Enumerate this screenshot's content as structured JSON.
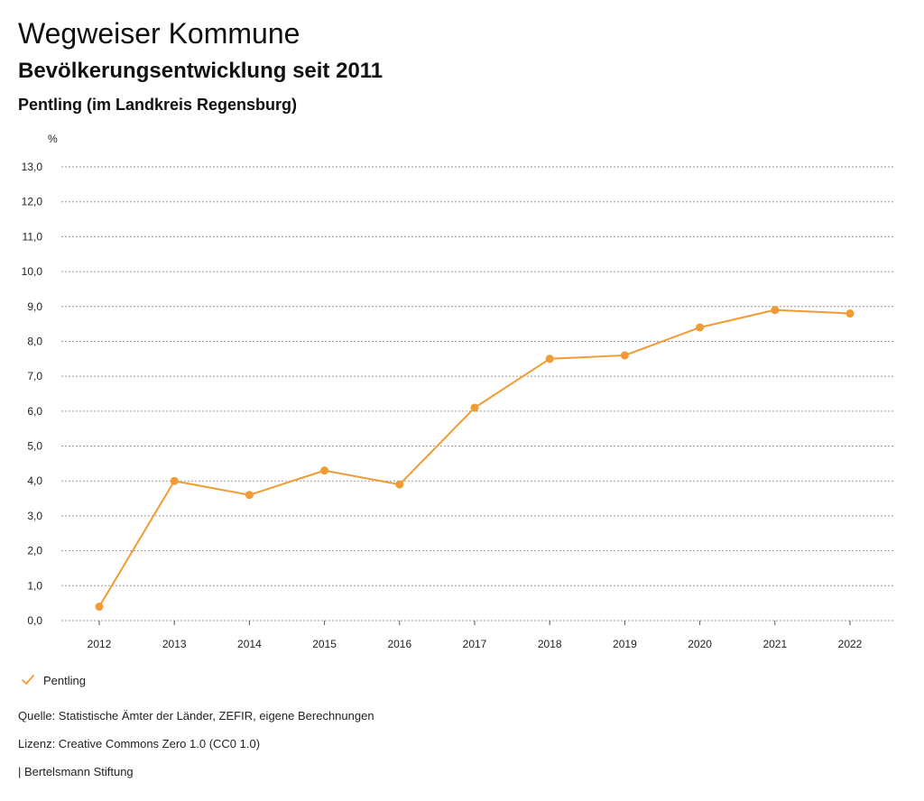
{
  "header": {
    "title": "Wegweiser Kommune",
    "subtitle": "Bevölkerungsentwicklung seit 2011",
    "location": "Pentling (im Landkreis Regensburg)"
  },
  "chart_data": {
    "type": "line",
    "title": "Bevölkerungsentwicklung seit 2011",
    "ylabel": "%",
    "xlabel": "",
    "categories": [
      "2012",
      "2013",
      "2014",
      "2015",
      "2016",
      "2017",
      "2018",
      "2019",
      "2020",
      "2021",
      "2022"
    ],
    "series": [
      {
        "name": "Pentling",
        "values": [
          0.4,
          4.0,
          3.6,
          4.3,
          3.9,
          6.1,
          7.5,
          7.6,
          8.4,
          8.9,
          8.8
        ]
      }
    ],
    "ylim": [
      0,
      13
    ],
    "yticks": [
      "0,0",
      "1,0",
      "2,0",
      "3,0",
      "4,0",
      "5,0",
      "6,0",
      "7,0",
      "8,0",
      "9,0",
      "10,0",
      "11,0",
      "12,0",
      "13,0"
    ],
    "grid": true,
    "legend_position": "bottom-left",
    "series_color": "#f29a33"
  },
  "legend": {
    "label": "Pentling",
    "icon": "checkmark-icon"
  },
  "footer": {
    "source": "Quelle: Statistische Ämter der Länder, ZEFIR, eigene Berechnungen",
    "license": "Lizenz: Creative Commons Zero 1.0 (CC0 1.0)",
    "publisher": "| Bertelsmann Stiftung"
  }
}
